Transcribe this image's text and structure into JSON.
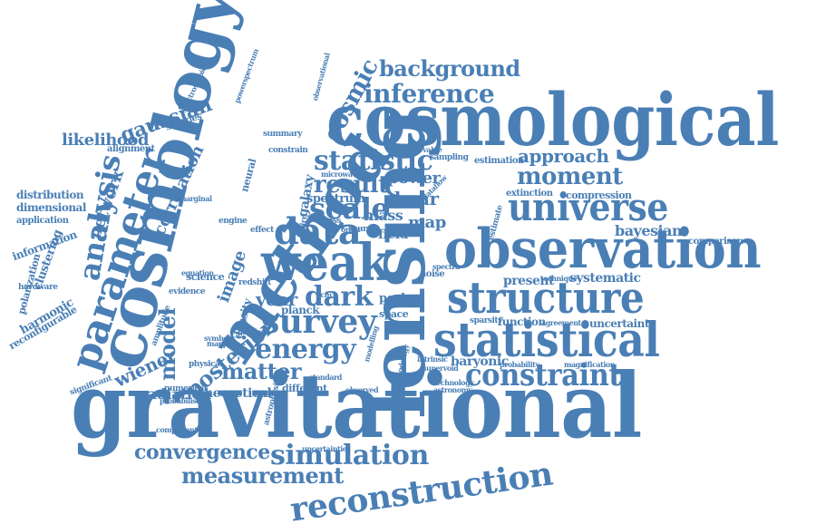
{
  "word_cloud": {
    "color": "#4a7fb5",
    "words": [
      {
        "text": "gravitational",
        "orientation": "horizontal"
      },
      {
        "text": "cosmological",
        "orientation": "horizontal"
      },
      {
        "text": "observation",
        "orientation": "horizontal"
      },
      {
        "text": "lensing",
        "orientation": "vertical"
      },
      {
        "text": "cosmology",
        "orientation": "vertical"
      },
      {
        "text": "statistical",
        "orientation": "horizontal"
      },
      {
        "text": "structure",
        "orientation": "horizontal"
      },
      {
        "text": "weak",
        "orientation": "horizontal"
      },
      {
        "text": "method",
        "orientation": "diagonal"
      },
      {
        "text": "parameter",
        "orientation": "vertical"
      },
      {
        "text": "universe",
        "orientation": "horizontal"
      },
      {
        "text": "reconstruction",
        "orientation": "diagonal"
      },
      {
        "text": "constraint",
        "orientation": "horizontal"
      },
      {
        "text": "data",
        "orientation": "horizontal"
      },
      {
        "text": "survey",
        "orientation": "horizontal"
      },
      {
        "text": "energy",
        "orientation": "horizontal"
      },
      {
        "text": "simulation",
        "orientation": "horizontal"
      },
      {
        "text": "inference",
        "orientation": "horizontal"
      },
      {
        "text": "background",
        "orientation": "horizontal"
      },
      {
        "text": "moment",
        "orientation": "horizontal"
      },
      {
        "text": "statistic",
        "orientation": "horizontal"
      },
      {
        "text": "dark",
        "orientation": "horizontal"
      },
      {
        "text": "matter",
        "orientation": "horizontal"
      },
      {
        "text": "analysis",
        "orientation": "vertical"
      },
      {
        "text": "scale",
        "orientation": "horizontal"
      },
      {
        "text": "result",
        "orientation": "horizontal"
      },
      {
        "text": "measurement",
        "orientation": "horizontal"
      },
      {
        "text": "convergence",
        "orientation": "horizontal"
      },
      {
        "text": "posterior",
        "orientation": "diagonal"
      },
      {
        "text": "cosmic",
        "orientation": "diagonal"
      },
      {
        "text": "approach",
        "orientation": "horizontal"
      },
      {
        "text": "shear",
        "orientation": "horizontal"
      },
      {
        "text": "gaussian",
        "orientation": "horizontal"
      },
      {
        "text": "likelihood",
        "orientation": "horizontal"
      },
      {
        "text": "bayesian",
        "orientation": "horizontal"
      },
      {
        "text": "model",
        "orientation": "vertical"
      },
      {
        "text": "year",
        "orientation": "horizontal"
      },
      {
        "text": "power",
        "orientation": "horizontal"
      },
      {
        "text": "mass",
        "orientation": "horizontal"
      },
      {
        "text": "map",
        "orientation": "horizontal"
      },
      {
        "text": "network",
        "orientation": "vertical"
      },
      {
        "text": "correlation",
        "orientation": "vertical"
      },
      {
        "text": "image",
        "orientation": "vertical"
      },
      {
        "text": "wiener",
        "orientation": "horizontal"
      },
      {
        "text": "radiation",
        "orientation": "horizontal"
      },
      {
        "text": "theoretical",
        "orientation": "horizontal"
      },
      {
        "text": "baryonic",
        "orientation": "horizontal"
      },
      {
        "text": "systematic",
        "orientation": "horizontal"
      },
      {
        "text": "present",
        "orientation": "horizontal"
      },
      {
        "text": "function",
        "orientation": "horizontal"
      },
      {
        "text": "uncertainty",
        "orientation": "horizontal"
      },
      {
        "text": "planck",
        "orientation": "horizontal"
      },
      {
        "text": "density",
        "orientation": "vertical"
      },
      {
        "text": "field",
        "orientation": "horizontal"
      },
      {
        "text": "galaxy",
        "orientation": "vertical"
      },
      {
        "text": "spectrum",
        "orientation": "horizontal"
      },
      {
        "text": "distribution",
        "orientation": "horizontal"
      },
      {
        "text": "dimensional",
        "orientation": "horizontal"
      },
      {
        "text": "application",
        "orientation": "horizontal"
      },
      {
        "text": "information",
        "orientation": "diagonal"
      },
      {
        "text": "clustering",
        "orientation": "vertical"
      },
      {
        "text": "polarization",
        "orientation": "vertical"
      },
      {
        "text": "harmonic",
        "orientation": "diagonal"
      },
      {
        "text": "reconfigurable",
        "orientation": "diagonal"
      },
      {
        "text": "galaxies",
        "orientation": "horizontal"
      },
      {
        "text": "extinction",
        "orientation": "horizontal"
      },
      {
        "text": "compression",
        "orientation": "horizontal"
      },
      {
        "text": "comparison",
        "orientation": "horizontal"
      },
      {
        "text": "estimation",
        "orientation": "horizontal"
      },
      {
        "text": "redshift",
        "orientation": "horizontal"
      },
      {
        "text": "evidence",
        "orientation": "horizontal"
      },
      {
        "text": "science",
        "orientation": "horizontal"
      },
      {
        "text": "different",
        "orientation": "horizontal"
      },
      {
        "text": "numerical",
        "orientation": "horizontal"
      },
      {
        "text": "probability",
        "orientation": "horizontal"
      },
      {
        "text": "magnification",
        "orientation": "horizontal"
      },
      {
        "text": "technique",
        "orientation": "horizontal"
      },
      {
        "text": "neural",
        "orientation": "vertical"
      },
      {
        "text": "mapping",
        "orientation": "horizontal"
      },
      {
        "text": "significant",
        "orientation": "diagonal"
      },
      {
        "text": "astrophysical",
        "orientation": "vertical"
      },
      {
        "text": "summary",
        "orientation": "horizontal"
      },
      {
        "text": "constrain",
        "orientation": "horizontal"
      },
      {
        "text": "alignment",
        "orientation": "horizontal"
      },
      {
        "text": "hardware",
        "orientation": "horizontal"
      },
      {
        "text": "peak",
        "orientation": "horizontal"
      },
      {
        "text": "space",
        "orientation": "horizontal"
      },
      {
        "text": "engine",
        "orientation": "horizontal"
      },
      {
        "text": "effect",
        "orientation": "horizontal"
      },
      {
        "text": "microwave",
        "orientation": "horizontal"
      },
      {
        "text": "marginal",
        "orientation": "horizontal"
      },
      {
        "text": "sampling",
        "orientation": "horizontal"
      },
      {
        "text": "observable",
        "orientation": "horizontal"
      },
      {
        "text": "noise",
        "orientation": "horizontal"
      },
      {
        "text": "source",
        "orientation": "horizontal"
      },
      {
        "text": "cross",
        "orientation": "horizontal"
      },
      {
        "text": "observed",
        "orientation": "horizontal"
      },
      {
        "text": "astronomy",
        "orientation": "horizontal"
      },
      {
        "text": "uncertainties",
        "orientation": "horizontal"
      },
      {
        "text": "supervoid",
        "orientation": "horizontal"
      },
      {
        "text": "intrinsic",
        "orientation": "horizontal"
      },
      {
        "text": "technology",
        "orientation": "horizontal"
      },
      {
        "text": "physical",
        "orientation": "horizontal"
      },
      {
        "text": "component",
        "orientation": "horizontal"
      },
      {
        "text": "standard",
        "orientation": "horizontal"
      },
      {
        "text": "spectra",
        "orientation": "horizontal"
      },
      {
        "text": "agreement",
        "orientation": "horizontal"
      },
      {
        "text": "sparsity",
        "orientation": "horizontal"
      },
      {
        "text": "dataflow",
        "orientation": "horizontal"
      },
      {
        "text": "estimate",
        "orientation": "vertical"
      },
      {
        "text": "observational",
        "orientation": "vertical"
      },
      {
        "text": "powerspectrum",
        "orientation": "vertical"
      },
      {
        "text": "spectroscopic",
        "orientation": "vertical"
      },
      {
        "text": "probabilistic",
        "orientation": "horizontal"
      },
      {
        "text": "methodology",
        "orientation": "vertical"
      },
      {
        "text": "third",
        "orientation": "vertical"
      },
      {
        "text": "order",
        "orientation": "horizontal"
      },
      {
        "text": "modelling",
        "orientation": "vertical"
      },
      {
        "text": "amplitude",
        "orientation": "vertical"
      },
      {
        "text": "equation",
        "orientation": "horizontal"
      },
      {
        "text": "symbolic",
        "orientation": "horizontal"
      },
      {
        "text": "problem",
        "orientation": "horizontal"
      },
      {
        "text": "ccm",
        "orientation": "horizontal"
      }
    ]
  }
}
